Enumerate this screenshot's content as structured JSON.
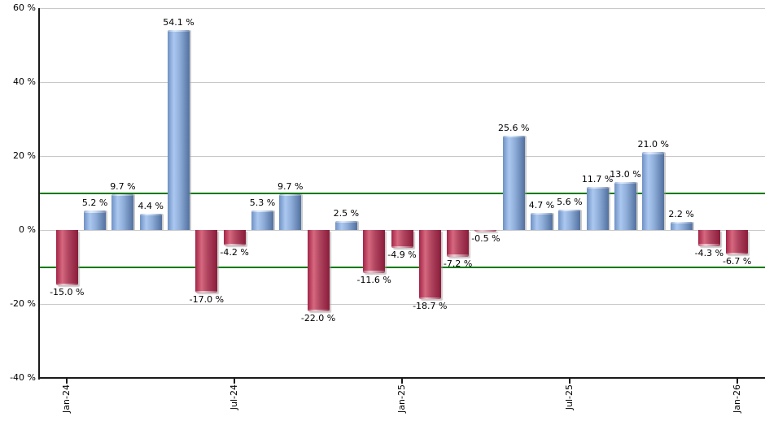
{
  "chart_data": {
    "type": "bar",
    "title": "",
    "unit": "%",
    "values": [
      -15.0,
      5.2,
      9.7,
      4.4,
      54.1,
      -17.0,
      -4.2,
      5.3,
      9.7,
      -22.0,
      2.5,
      -11.6,
      -4.9,
      -18.7,
      -7.2,
      -0.5,
      25.6,
      4.7,
      5.6,
      11.7,
      13.0,
      21.0,
      2.2,
      -4.3,
      -6.7
    ],
    "value_labels": [
      "-15.0 %",
      "5.2 %",
      "9.7 %",
      "4.4 %",
      "54.1 %",
      "-17.0 %",
      "-4.2 %",
      "5.3 %",
      "9.7 %",
      "-22.0 %",
      "2.5 %",
      "-11.6 %",
      "-4.9 %",
      "-18.7 %",
      "-7.2 %",
      "-0.5 %",
      "25.6 %",
      "4.7 %",
      "5.6 %",
      "11.7 %",
      "13.0 %",
      "21.0 %",
      "2.2 %",
      "-4.3 %",
      "-6.7 %"
    ],
    "x_ticks": [
      {
        "index": 0,
        "label": "Jan-24"
      },
      {
        "index": 6,
        "label": "Jul-24"
      },
      {
        "index": 12,
        "label": "Jan-25"
      },
      {
        "index": 18,
        "label": "Jul-25"
      },
      {
        "index": 24,
        "label": "Jan-26"
      }
    ],
    "y_ticks": [
      {
        "value": 60,
        "label": "60 %"
      },
      {
        "value": 40,
        "label": "40 %"
      },
      {
        "value": 20,
        "label": "20 %"
      },
      {
        "value": 0,
        "label": "0 %"
      },
      {
        "value": -20,
        "label": "-20 %"
      },
      {
        "value": -40,
        "label": "-40 %"
      }
    ],
    "ylim": [
      -40,
      60
    ],
    "reference_lines": [
      {
        "value": 10,
        "color": "#007800"
      },
      {
        "value": -10,
        "color": "#007800"
      }
    ],
    "grid": true,
    "legend": "none",
    "colors": {
      "positive_bar_light": "#abc8f0",
      "positive_bar_mid": "#6f91c3",
      "positive_bar_dark": "#52709e",
      "negative_bar_light": "#d6687f",
      "negative_bar_mid": "#a32547",
      "negative_bar_dark": "#8a1c3a",
      "reference_line": "#007800",
      "gridline": "#c9c9c9",
      "axis": "#1a1a1a",
      "text": "#000000"
    }
  }
}
